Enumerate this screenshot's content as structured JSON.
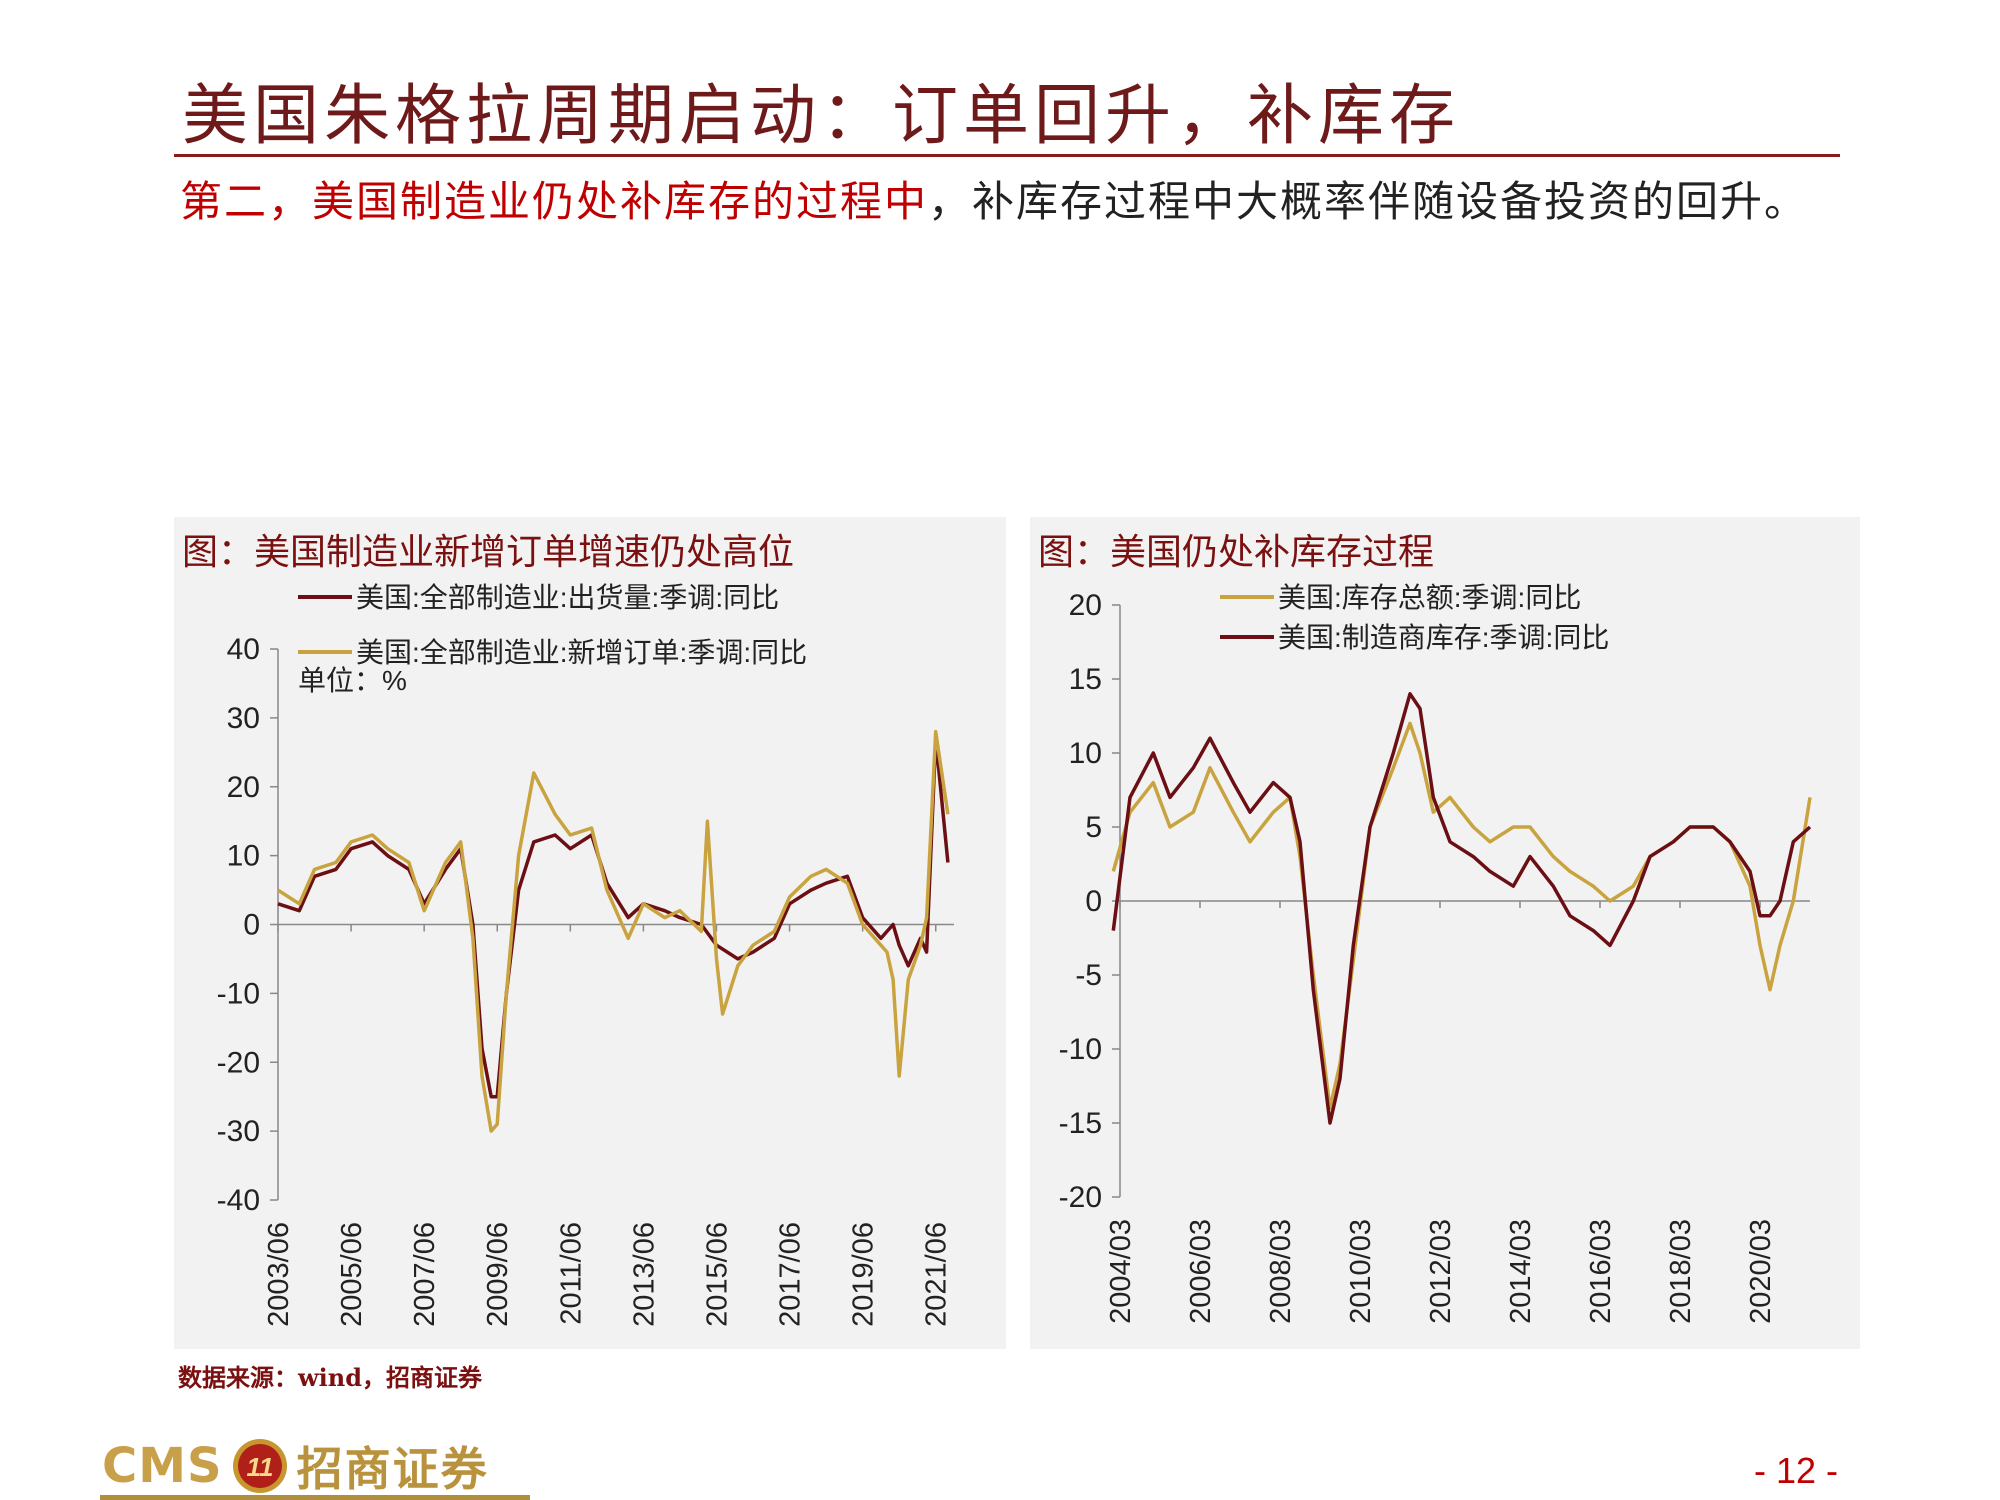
{
  "slide": {
    "title": "美国朱格拉周期启动：订单回升，补库存",
    "body_highlight": "第二，美国制造业仍处补库存的过程中",
    "body_rest": "，补库存过程中大概率伴随设备投资的回升。",
    "source_note": "数据来源：wind，招商证券",
    "brand_en": "CMS",
    "brand_logo_text": "11",
    "brand_cn": "招商证券",
    "page_number": "- 12 -"
  },
  "colors": {
    "dark_red": "#6b0f14",
    "gold": "#c8a33f",
    "accent_red": "#c00000"
  },
  "chart_data": [
    {
      "type": "line",
      "title": "图：美国制造业新增订单增速仍处高位",
      "unit_label": "单位：%",
      "ylim": [
        -40,
        40
      ],
      "yticks": [
        40,
        30,
        20,
        10,
        0,
        -10,
        -20,
        -30,
        -40
      ],
      "xlim": [
        "2003/06",
        "2021/12"
      ],
      "xtick_labels": [
        "2003/06",
        "2005/06",
        "2007/06",
        "2009/06",
        "2011/06",
        "2013/06",
        "2015/06",
        "2017/06",
        "2019/06",
        "2021/06"
      ],
      "legend_placement": "top-left",
      "grid": false,
      "series": [
        {
          "name": "美国:全部制造业:出货量:季调:同比",
          "color": "#6b0f14",
          "x": [
            "2003/06",
            "2004/01",
            "2004/06",
            "2005/01",
            "2005/06",
            "2006/01",
            "2006/06",
            "2007/01",
            "2007/06",
            "2008/01",
            "2008/06",
            "2008/10",
            "2009/01",
            "2009/04",
            "2009/06",
            "2009/09",
            "2010/01",
            "2010/06",
            "2011/01",
            "2011/06",
            "2012/01",
            "2012/06",
            "2013/01",
            "2013/06",
            "2014/01",
            "2014/06",
            "2015/01",
            "2015/06",
            "2016/01",
            "2016/06",
            "2017/01",
            "2017/06",
            "2018/01",
            "2018/06",
            "2019/01",
            "2019/06",
            "2019/12",
            "2020/02",
            "2020/04",
            "2020/06",
            "2020/09",
            "2021/01",
            "2021/03",
            "2021/06",
            "2021/10"
          ],
          "values": [
            3,
            2,
            7,
            8,
            11,
            12,
            10,
            8,
            3,
            8,
            11,
            0,
            -18,
            -25,
            -25,
            -10,
            5,
            12,
            13,
            11,
            13,
            6,
            1,
            3,
            2,
            1,
            0,
            -3,
            -5,
            -4,
            -2,
            3,
            5,
            6,
            7,
            1,
            -2,
            -1,
            0,
            -3,
            -6,
            -2,
            -4,
            27,
            9
          ]
        },
        {
          "name": "美国:全部制造业:新增订单:季调:同比",
          "color": "#c8a33f",
          "x": [
            "2003/06",
            "2004/01",
            "2004/06",
            "2005/01",
            "2005/06",
            "2006/01",
            "2006/06",
            "2007/01",
            "2007/06",
            "2008/01",
            "2008/06",
            "2008/10",
            "2009/01",
            "2009/04",
            "2009/06",
            "2009/09",
            "2010/01",
            "2010/06",
            "2011/01",
            "2011/06",
            "2012/01",
            "2012/06",
            "2013/01",
            "2013/06",
            "2014/01",
            "2014/06",
            "2015/01",
            "2015/03",
            "2015/06",
            "2015/08",
            "2016/01",
            "2016/06",
            "2017/01",
            "2017/06",
            "2018/01",
            "2018/06",
            "2019/01",
            "2019/06",
            "2019/12",
            "2020/02",
            "2020/04",
            "2020/06",
            "2020/09",
            "2021/01",
            "2021/03",
            "2021/06",
            "2021/10"
          ],
          "values": [
            5,
            3,
            8,
            9,
            12,
            13,
            11,
            9,
            2,
            9,
            12,
            -2,
            -22,
            -30,
            -29,
            -10,
            10,
            22,
            16,
            13,
            14,
            5,
            -2,
            3,
            1,
            2,
            -1,
            15,
            -5,
            -13,
            -6,
            -3,
            -1,
            4,
            7,
            8,
            6,
            0,
            -3,
            -4,
            -8,
            -22,
            -8,
            -3,
            1,
            28,
            16
          ]
        }
      ]
    },
    {
      "type": "line",
      "title": "图：美国仍处补库存过程",
      "ylim": [
        -20,
        20
      ],
      "yticks": [
        20,
        15,
        10,
        5,
        0,
        -5,
        -10,
        -15,
        -20
      ],
      "xlim": [
        "2004/03",
        "2021/06"
      ],
      "xtick_labels": [
        "2004/03",
        "2006/03",
        "2008/03",
        "2010/03",
        "2012/03",
        "2014/03",
        "2016/03",
        "2018/03",
        "2020/03"
      ],
      "legend_placement": "top-right",
      "grid": false,
      "series": [
        {
          "name": "美国:库存总额:季调:同比",
          "color": "#c8a33f",
          "x": [
            "2004/01",
            "2004/06",
            "2005/01",
            "2005/06",
            "2006/01",
            "2006/06",
            "2007/01",
            "2007/06",
            "2008/01",
            "2008/06",
            "2008/09",
            "2009/01",
            "2009/06",
            "2009/09",
            "2010/01",
            "2010/06",
            "2011/01",
            "2011/06",
            "2011/09",
            "2012/01",
            "2012/06",
            "2013/01",
            "2013/06",
            "2014/01",
            "2014/06",
            "2015/01",
            "2015/06",
            "2016/01",
            "2016/06",
            "2017/01",
            "2017/06",
            "2018/01",
            "2018/06",
            "2019/01",
            "2019/06",
            "2019/12",
            "2020/03",
            "2020/06",
            "2020/09",
            "2021/01",
            "2021/06"
          ],
          "values": [
            2,
            6,
            8,
            5,
            6,
            9,
            6,
            4,
            6,
            7,
            3,
            -5,
            -14,
            -11,
            -4,
            5,
            9,
            12,
            10,
            6,
            7,
            5,
            4,
            5,
            5,
            3,
            2,
            1,
            0,
            1,
            3,
            4,
            5,
            5,
            4,
            1,
            -3,
            -6,
            -3,
            0,
            7
          ]
        },
        {
          "name": "美国:制造商库存:季调:同比",
          "color": "#6b0f14",
          "x": [
            "2004/01",
            "2004/06",
            "2005/01",
            "2005/06",
            "2006/01",
            "2006/06",
            "2007/01",
            "2007/06",
            "2008/01",
            "2008/06",
            "2008/09",
            "2009/01",
            "2009/06",
            "2009/09",
            "2010/01",
            "2010/06",
            "2011/01",
            "2011/06",
            "2011/09",
            "2012/01",
            "2012/06",
            "2013/01",
            "2013/06",
            "2014/01",
            "2014/06",
            "2015/01",
            "2015/06",
            "2016/01",
            "2016/06",
            "2017/01",
            "2017/06",
            "2018/01",
            "2018/06",
            "2019/01",
            "2019/06",
            "2019/12",
            "2020/03",
            "2020/06",
            "2020/09",
            "2021/01",
            "2021/06"
          ],
          "values": [
            -2,
            7,
            10,
            7,
            9,
            11,
            8,
            6,
            8,
            7,
            4,
            -6,
            -15,
            -12,
            -3,
            5,
            10,
            14,
            13,
            7,
            4,
            3,
            2,
            1,
            3,
            1,
            -1,
            -2,
            -3,
            0,
            3,
            4,
            5,
            5,
            4,
            2,
            -1,
            -1,
            0,
            4,
            5
          ]
        }
      ]
    }
  ]
}
